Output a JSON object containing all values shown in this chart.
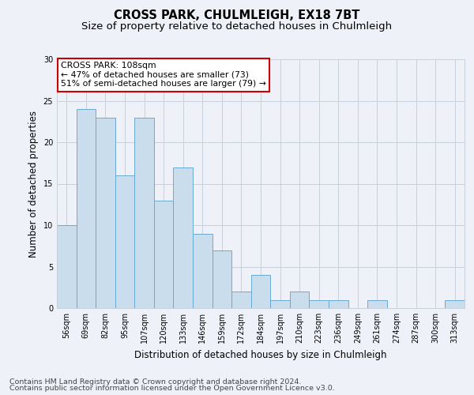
{
  "title1": "CROSS PARK, CHULMLEIGH, EX18 7BT",
  "title2": "Size of property relative to detached houses in Chulmleigh",
  "xlabel": "Distribution of detached houses by size in Chulmleigh",
  "ylabel": "Number of detached properties",
  "categories": [
    "56sqm",
    "69sqm",
    "82sqm",
    "95sqm",
    "107sqm",
    "120sqm",
    "133sqm",
    "146sqm",
    "159sqm",
    "172sqm",
    "184sqm",
    "197sqm",
    "210sqm",
    "223sqm",
    "236sqm",
    "249sqm",
    "261sqm",
    "274sqm",
    "287sqm",
    "300sqm",
    "313sqm"
  ],
  "values": [
    10,
    24,
    23,
    16,
    23,
    13,
    17,
    9,
    7,
    2,
    4,
    1,
    2,
    1,
    1,
    0,
    1,
    0,
    0,
    0,
    1
  ],
  "bar_color": "#c9dded",
  "bar_edge_color": "#6aaad4",
  "highlight_bar_index": 4,
  "annotation_text_line1": "CROSS PARK: 108sqm",
  "annotation_text_line2": "← 47% of detached houses are smaller (73)",
  "annotation_text_line3": "51% of semi-detached houses are larger (79) →",
  "annotation_box_color": "#ffffff",
  "annotation_box_edge_color": "#cc0000",
  "ylim": [
    0,
    30
  ],
  "yticks": [
    0,
    5,
    10,
    15,
    20,
    25,
    30
  ],
  "grid_color": "#c8d0dc",
  "background_color": "#eef2f8",
  "footer1": "Contains HM Land Registry data © Crown copyright and database right 2024.",
  "footer2": "Contains public sector information licensed under the Open Government Licence v3.0.",
  "title_fontsize": 10.5,
  "subtitle_fontsize": 9.5,
  "axis_label_fontsize": 8.5,
  "tick_fontsize": 7,
  "annotation_fontsize": 7.8,
  "footer_fontsize": 6.8
}
